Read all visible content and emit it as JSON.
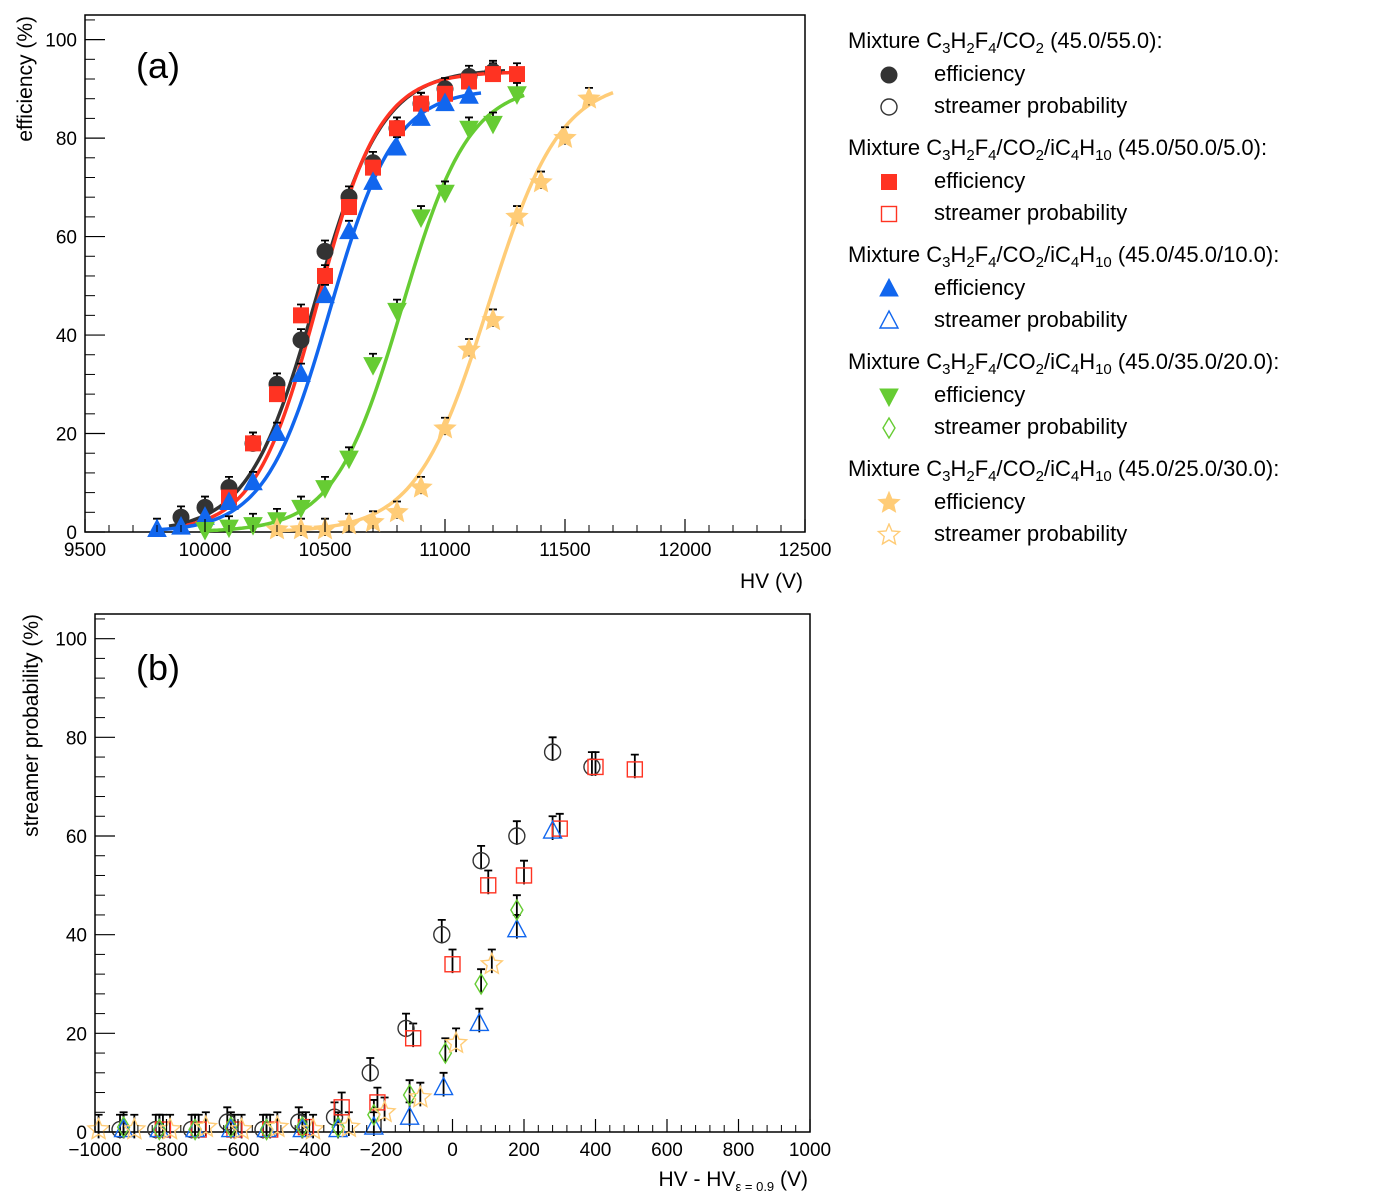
{
  "colors": {
    "m1": "#333333",
    "m2": "#ff3322",
    "m3": "#1166ee",
    "m4": "#66cc33",
    "m5": "#ffcc77",
    "errbar": "#000000"
  },
  "legend": {
    "groups": [
      {
        "head": {
          "pre": "Mixture C",
          "s1": "3",
          "t1": "H",
          "s2": "2",
          "t2": "F",
          "s3": "4",
          "t3": "/CO",
          "s4": "2",
          "t4": "",
          "s5": "",
          "tail": " (45.0/55.0):"
        },
        "eff_label": "efficiency",
        "str_label": "streamer probability",
        "eff_icon": "filled-circle-icon",
        "str_icon": "open-circle-icon"
      },
      {
        "head": {
          "pre": "Mixture C",
          "s1": "3",
          "t1": "H",
          "s2": "2",
          "t2": "F",
          "s3": "4",
          "t3": "/CO",
          "s4": "2",
          "t4": "/iC",
          "s5": "4",
          "t5": "H",
          "s6": "10",
          "tail": " (45.0/50.0/5.0):"
        },
        "eff_label": "efficiency",
        "str_label": "streamer probability",
        "eff_icon": "filled-square-icon",
        "str_icon": "open-square-icon"
      },
      {
        "head": {
          "pre": "Mixture C",
          "s1": "3",
          "t1": "H",
          "s2": "2",
          "t2": "F",
          "s3": "4",
          "t3": "/CO",
          "s4": "2",
          "t4": "/iC",
          "s5": "4",
          "t5": "H",
          "s6": "10",
          "tail": " (45.0/45.0/10.0):"
        },
        "eff_label": "efficiency",
        "str_label": "streamer probability",
        "eff_icon": "filled-triangle-up-icon",
        "str_icon": "open-triangle-up-icon"
      },
      {
        "head": {
          "pre": "Mixture C",
          "s1": "3",
          "t1": "H",
          "s2": "2",
          "t2": "F",
          "s3": "4",
          "t3": "/CO",
          "s4": "2",
          "t4": "/iC",
          "s5": "4",
          "t5": "H",
          "s6": "10",
          "tail": " (45.0/35.0/20.0):"
        },
        "eff_label": "efficiency",
        "str_label": "streamer probability",
        "eff_icon": "filled-triangle-down-icon",
        "str_icon": "open-diamond-icon"
      },
      {
        "head": {
          "pre": "Mixture C",
          "s1": "3",
          "t1": "H",
          "s2": "2",
          "t2": "F",
          "s3": "4",
          "t3": "/CO",
          "s4": "2",
          "t4": "/iC",
          "s5": "4",
          "t5": "H",
          "s6": "10",
          "tail": " (45.0/25.0/30.0):"
        },
        "eff_label": "efficiency",
        "str_label": "streamer probability",
        "eff_icon": "filled-star-icon",
        "str_icon": "open-star-icon"
      }
    ]
  },
  "chart_data": [
    {
      "type": "scatter",
      "panel_label": "(a)",
      "xlabel": "HV (V)",
      "ylabel": "efficiency (%)",
      "xlim": [
        9500,
        12500
      ],
      "ylim": [
        0,
        105
      ],
      "xticks": [
        9500,
        10000,
        10500,
        11000,
        11500,
        12000,
        12500
      ],
      "xtick_labels": [
        "9500",
        "10000",
        "10500",
        "11000",
        "11500",
        "12000",
        "12500"
      ],
      "yticks": [
        0,
        20,
        40,
        60,
        80,
        100
      ],
      "ytick_labels": [
        "0",
        "20",
        "40",
        "60",
        "80",
        "100"
      ],
      "series": [
        {
          "name": "C3H2F4/CO2 (45.0/55.0) efficiency",
          "marker": "circle",
          "color_key": "m1",
          "x": [
            9900,
            10000,
            10100,
            10200,
            10300,
            10400,
            10500,
            10600,
            10700,
            10800,
            10900,
            11000,
            11100,
            11200
          ],
          "y": [
            3,
            5,
            9,
            18,
            30,
            39,
            57,
            68,
            75,
            82,
            87,
            90,
            92.5,
            93.5
          ],
          "fit": {
            "ymax": 94,
            "x50": 10460,
            "w": 140,
            "xmin": 9850,
            "xmax": 11250
          }
        },
        {
          "name": "C3H2F4/CO2/iC4H10 (45.0/50.0/5.0) efficiency",
          "marker": "square",
          "color_key": "m2",
          "x": [
            10100,
            10200,
            10300,
            10400,
            10500,
            10600,
            10700,
            10800,
            10900,
            11000,
            11100,
            11200,
            11300
          ],
          "y": [
            7,
            18,
            28,
            44,
            52,
            66,
            74,
            82,
            87,
            89,
            91.5,
            93,
            93
          ],
          "fit": {
            "ymax": 93.5,
            "x50": 10470,
            "w": 130,
            "xmin": 9900,
            "xmax": 11330
          }
        },
        {
          "name": "C3H2F4/CO2/iC4H10 (45.0/45.0/10.0) efficiency",
          "marker": "triangle-up",
          "color_key": "m3",
          "x": [
            9800,
            9900,
            10000,
            10100,
            10200,
            10300,
            10400,
            10500,
            10600,
            10700,
            10800,
            10900,
            11000,
            11100
          ],
          "y": [
            0.5,
            1,
            3,
            6,
            10,
            20,
            32,
            48,
            61,
            71,
            78,
            84,
            87,
            88.5
          ],
          "fit": {
            "ymax": 90,
            "x50": 10520,
            "w": 135,
            "xmin": 9800,
            "xmax": 11150
          }
        },
        {
          "name": "C3H2F4/CO2/iC4H10 (45.0/35.0/20.0) efficiency",
          "marker": "triangle-down",
          "color_key": "m4",
          "x": [
            10000,
            10100,
            10200,
            10300,
            10400,
            10500,
            10600,
            10700,
            10800,
            10900,
            11000,
            11100,
            11200,
            11300
          ],
          "y": [
            0.5,
            1,
            1.5,
            2.5,
            5,
            9,
            15,
            34,
            45,
            64,
            69,
            82,
            83,
            89
          ],
          "fit": {
            "ymax": 91,
            "x50": 10820,
            "w": 140,
            "xmin": 10000,
            "xmax": 11330
          }
        },
        {
          "name": "C3H2F4/CO2/iC4H10 (45.0/25.0/30.0) efficiency",
          "marker": "star",
          "color_key": "m5",
          "x": [
            10300,
            10400,
            10500,
            10600,
            10700,
            10800,
            10900,
            11000,
            11100,
            11200,
            11300,
            11400,
            11500,
            11600
          ],
          "y": [
            0.5,
            0.5,
            0.5,
            1.5,
            2,
            4,
            9,
            21,
            37,
            43,
            64,
            71,
            80,
            88
          ],
          "fit": {
            "ymax": 92,
            "x50": 11180,
            "w": 150,
            "xmin": 10300,
            "xmax": 11700
          }
        }
      ]
    },
    {
      "type": "scatter",
      "panel_label": "(b)",
      "xlabel": "HV - HV",
      "xlabel_sub": "ε = 0.9",
      "xlabel_tail": " (V)",
      "ylabel": "streamer probability (%)",
      "xlim": [
        -1000,
        1000
      ],
      "ylim": [
        0,
        105
      ],
      "xticks": [
        -1000,
        -800,
        -600,
        -400,
        -200,
        0,
        200,
        400,
        600,
        800,
        1000
      ],
      "xtick_labels": [
        "−1000",
        "−800",
        "−600",
        "−400",
        "−200",
        "0",
        "200",
        "400",
        "600",
        "800",
        "1000"
      ],
      "yticks": [
        0,
        20,
        40,
        60,
        80,
        100
      ],
      "ytick_labels": [
        "0",
        "20",
        "40",
        "60",
        "80",
        "100"
      ],
      "series": [
        {
          "name": "C3H2F4/CO2 (45.0/55.0) streamer probability",
          "marker": "circle-open",
          "color_key": "m1",
          "x": [
            -930,
            -830,
            -730,
            -630,
            -530,
            -430,
            -330,
            -230,
            -130,
            -30,
            80,
            180,
            280,
            390
          ],
          "y": [
            0.5,
            0.5,
            0.5,
            2,
            0.5,
            2,
            3,
            12,
            21,
            40,
            55,
            60,
            77,
            74
          ]
        },
        {
          "name": "C3H2F4/CO2/iC4H10 (45.0/50.0/5.0) streamer probability",
          "marker": "square-open",
          "color_key": "m2",
          "x": [
            -810,
            -710,
            -610,
            -510,
            -410,
            -310,
            -210,
            -110,
            0,
            100,
            200,
            300,
            400,
            510
          ],
          "y": [
            0.5,
            0.5,
            0.5,
            0.5,
            1,
            5,
            6,
            19,
            34,
            50,
            52,
            61.5,
            74,
            73.5
          ]
        },
        {
          "name": "C3H2F4/CO2/iC4H10 (45.0/45.0/10.0) streamer probability",
          "marker": "triangle-open",
          "color_key": "m3",
          "x": [
            -920,
            -820,
            -720,
            -620,
            -520,
            -420,
            -320,
            -220,
            -120,
            -25,
            75,
            180,
            280
          ],
          "y": [
            0.5,
            0.5,
            0.5,
            0.5,
            0.5,
            0.5,
            0.5,
            1,
            3,
            9,
            22,
            41,
            61
          ]
        },
        {
          "name": "C3H2F4/CO2/iC4H10 (45.0/35.0/20.0) streamer probability",
          "marker": "diamond-open",
          "color_key": "m4",
          "x": [
            -920,
            -820,
            -720,
            -620,
            -520,
            -420,
            -320,
            -220,
            -120,
            -20,
            80,
            180
          ],
          "y": [
            1,
            0.5,
            0.5,
            1,
            0.5,
            1,
            1,
            3.5,
            7.5,
            16,
            30,
            45
          ]
        },
        {
          "name": "C3H2F4/CO2/iC4H10 (45.0/25.0/30.0) streamer probability",
          "marker": "star-open",
          "color_key": "m5",
          "x": [
            -990,
            -890,
            -790,
            -690,
            -590,
            -490,
            -390,
            -290,
            -190,
            -90,
            10,
            110
          ],
          "y": [
            0.5,
            0.5,
            0.5,
            1,
            0.5,
            1,
            0.5,
            1,
            4,
            7,
            18,
            34
          ]
        }
      ]
    }
  ]
}
